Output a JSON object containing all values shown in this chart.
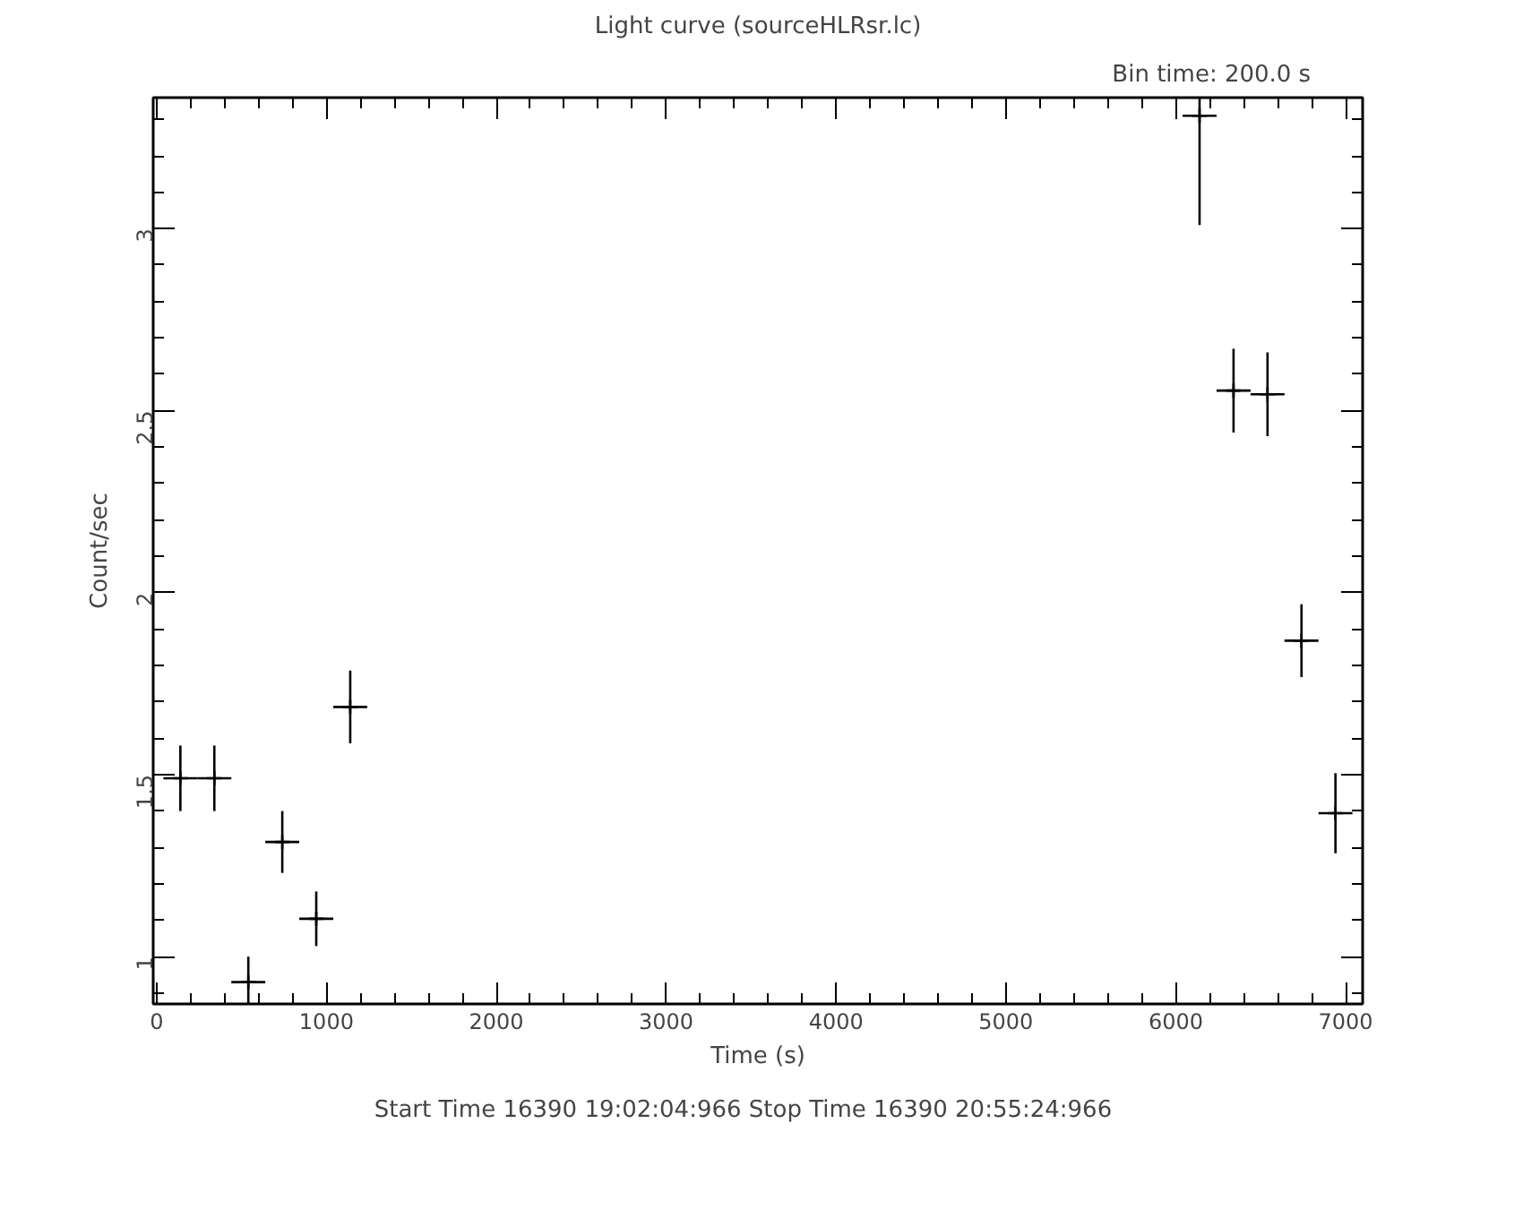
{
  "chart_data": {
    "type": "scatter",
    "title": "Light curve (sourceHLRsr.lc)",
    "xlabel": "Time (s)",
    "ylabel": "Count/sec",
    "annotations": [
      "Bin time:    200.0     s",
      "Start Time 16390 19:02:04:966     Stop Time 16390 20:55:24:966"
    ],
    "x": [
      140,
      340,
      540,
      740,
      940,
      1140,
      6140,
      6340,
      6540,
      6740,
      6940
    ],
    "series": [
      {
        "color": "#000000",
        "values": [
          1.49,
          1.49,
          0.93,
          1.315,
          1.104,
          1.686,
          3.31,
          2.555,
          2.545,
          1.868,
          1.394
        ],
        "errors": [
          0.09,
          0.09,
          [
            0.87,
            1.0
          ],
          0.085,
          0.075,
          0.1,
          [
            3.01,
            3.36
          ],
          0.115,
          0.115,
          0.1,
          0.11
        ],
        "xerrors": [
          100,
          100,
          100,
          100,
          100,
          100,
          100,
          100,
          100,
          100,
          100
        ]
      }
    ],
    "marker": "cross",
    "grid": false,
    "xlim": [
      -20,
      7100
    ],
    "ylim": [
      0.87,
      3.36
    ],
    "xticks": [
      0,
      1000,
      2000,
      3000,
      4000,
      5000,
      6000,
      7000
    ],
    "yticks": [
      1,
      1.5,
      2,
      2.5,
      3
    ]
  }
}
